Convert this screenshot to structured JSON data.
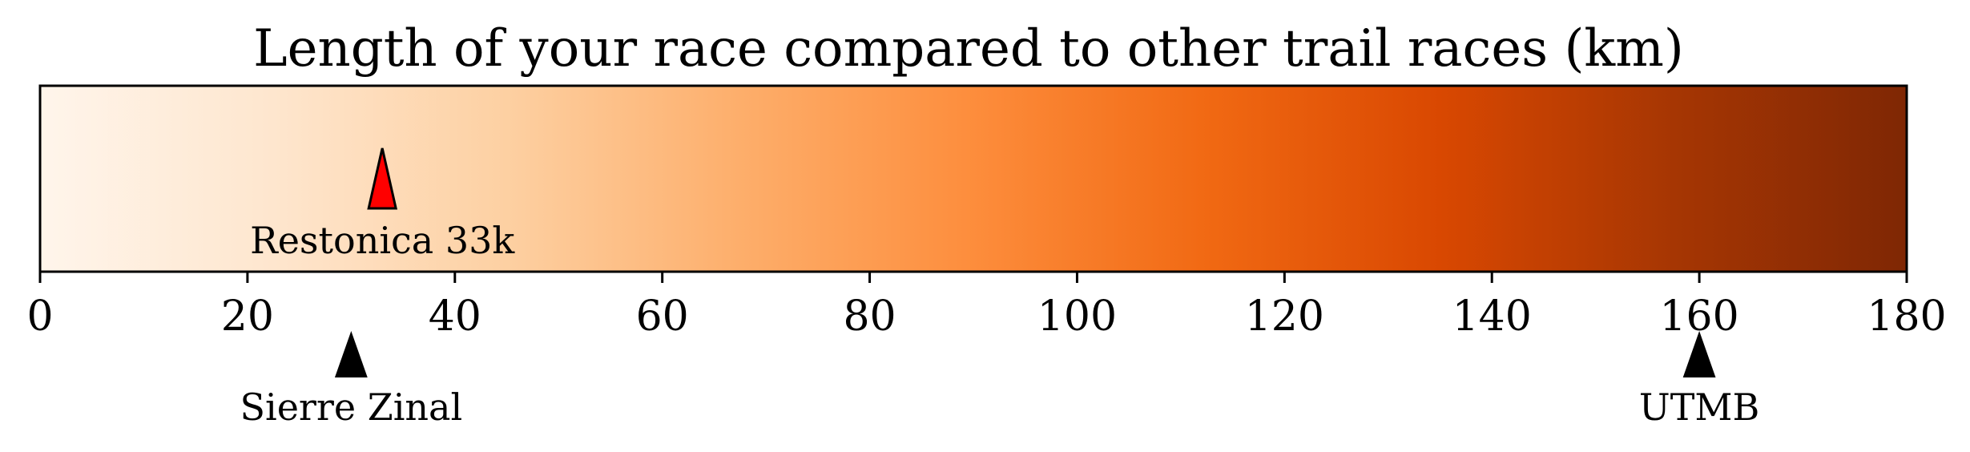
{
  "chart_data": {
    "type": "colorbar",
    "title": "Length of your race compared to other trail races (km)",
    "xlim": [
      0,
      180
    ],
    "ticks": [
      0,
      20,
      40,
      60,
      80,
      100,
      120,
      140,
      160,
      180
    ],
    "tick_labels": [
      "0",
      "20",
      "40",
      "60",
      "80",
      "100",
      "120",
      "140",
      "160",
      "180"
    ],
    "colormap": "Oranges",
    "colormap_stops": [
      "#fff5eb",
      "#fee6ce",
      "#fdd0a2",
      "#fdae6b",
      "#fd8d3c",
      "#f16913",
      "#d94801",
      "#a63603",
      "#7f2704"
    ],
    "your_race": {
      "label": "Restonica 33k",
      "value": 33,
      "color": "#ff0000"
    },
    "reference_races": [
      {
        "label": "Sierre Zinal",
        "value": 30,
        "color": "#000000"
      },
      {
        "label": "UTMB",
        "value": 160,
        "color": "#000000"
      }
    ]
  }
}
